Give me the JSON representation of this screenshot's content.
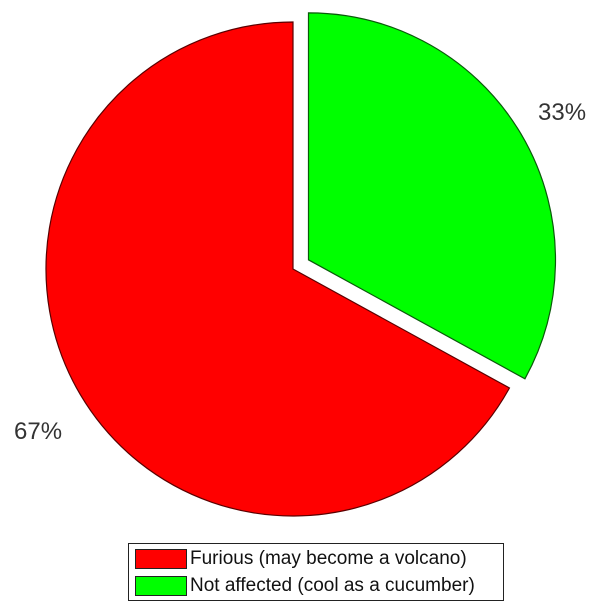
{
  "chart_data": {
    "type": "pie",
    "title": "",
    "slices": [
      {
        "label": "Furious (may become a volcano)",
        "value": 67,
        "value_label": "67%",
        "color": "#ff0000",
        "exploded": false
      },
      {
        "label": "Not affected (cool as a cucumber)",
        "value": 33,
        "value_label": "33%",
        "color": "#00ff00",
        "exploded": true
      }
    ],
    "legend_position": "bottom"
  }
}
